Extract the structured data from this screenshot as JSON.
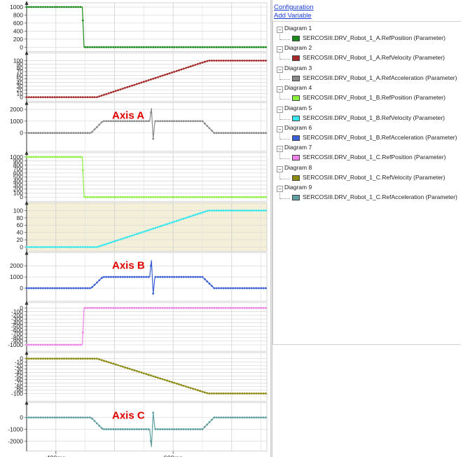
{
  "links": {
    "configuration": "Configuration",
    "add_variable": "Add Variable"
  },
  "tree": [
    {
      "diagram": "Diagram 1",
      "variable": "SERCOSIII.DRV_Robot_1_A.RefPosition (Parameter)",
      "color": "#1a8a1a"
    },
    {
      "diagram": "Diagram 2",
      "variable": "SERCOSIII.DRV_Robot_1_A.RefVelocity (Parameter)",
      "color": "#a52a2a"
    },
    {
      "diagram": "Diagram 3",
      "variable": "SERCOSIII.DRV_Robot_1_A.RefAcceleration (Parameter)",
      "color": "#8a8a8a"
    },
    {
      "diagram": "Diagram 4",
      "variable": "SERCOSIII.DRV_Robot_1_B.RefPosition (Parameter)",
      "color": "#8cf03c"
    },
    {
      "diagram": "Diagram 5",
      "variable": "SERCOSIII.DRV_Robot_1_B.RefVelocity (Parameter)",
      "color": "#34e6ee"
    },
    {
      "diagram": "Diagram 6",
      "variable": "SERCOSIII.DRV_Robot_1_B.RefAcceleration (Parameter)",
      "color": "#3a5fd6"
    },
    {
      "diagram": "Diagram 7",
      "variable": "SERCOSIII.DRV_Robot_1_C.RefPosition (Parameter)",
      "color": "#ee82e6"
    },
    {
      "diagram": "Diagram 8",
      "variable": "SERCOSIII.DRV_Robot_1_C.RefVelocity (Parameter)",
      "color": "#8a8a10"
    },
    {
      "diagram": "Diagram 9",
      "variable": "SERCOSIII.DRV_Robot_1_C.RefAcceleration (Parameter)",
      "color": "#5f9ea0"
    }
  ],
  "annotations": {
    "axis_a": "Axis A",
    "axis_b": "Axis B",
    "axis_c": "Axis C",
    "color": "#e00000"
  },
  "chart_data": {
    "type": "line",
    "x_unit": "ms",
    "xlim": [
      350,
      760
    ],
    "x_ticks": [
      400,
      600
    ],
    "x_tick_labels": [
      "400ms",
      "600ms"
    ],
    "grid": true,
    "diagrams": [
      {
        "name": "SERCOSIII.DRV_Robot_1_A.RefPosition (Parameter)",
        "color": "#1a8a1a",
        "ylim": [
          0,
          1000
        ],
        "yticks": [
          0,
          200,
          400,
          600,
          800,
          1000
        ],
        "points": [
          [
            350,
            1000
          ],
          [
            445,
            1000
          ],
          [
            448,
            0
          ],
          [
            760,
            0
          ]
        ]
      },
      {
        "name": "SERCOSIII.DRV_Robot_1_A.RefVelocity (Parameter)",
        "color": "#a52a2a",
        "ylim": [
          0,
          110
        ],
        "yticks": [
          0,
          10,
          20,
          30,
          40,
          50,
          60,
          70,
          80,
          90,
          100
        ],
        "points": [
          [
            350,
            0
          ],
          [
            470,
            0
          ],
          [
            660,
            100
          ],
          [
            760,
            100
          ]
        ]
      },
      {
        "name": "SERCOSIII.DRV_Robot_1_A.RefAcceleration (Parameter)",
        "color": "#8a8a8a",
        "ylim": [
          -1200,
          2200
        ],
        "yticks": [
          0,
          1000,
          2000
        ],
        "points": [
          [
            350,
            0
          ],
          [
            460,
            0
          ],
          [
            480,
            1000
          ],
          [
            560,
            1000
          ],
          [
            563,
            2100
          ],
          [
            566,
            -500
          ],
          [
            569,
            1000
          ],
          [
            650,
            1000
          ],
          [
            670,
            0
          ],
          [
            760,
            0
          ]
        ]
      },
      {
        "name": "SERCOSIII.DRV_Robot_1_B.RefPosition (Parameter)",
        "color": "#8cf03c",
        "ylim": [
          0,
          1000
        ],
        "yticks": [
          0,
          100,
          200,
          300,
          400,
          500,
          600,
          700,
          800,
          900,
          1000
        ],
        "points": [
          [
            350,
            1000
          ],
          [
            445,
            1000
          ],
          [
            448,
            0
          ],
          [
            760,
            0
          ]
        ]
      },
      {
        "name": "SERCOSIII.DRV_Robot_1_B.RefVelocity (Parameter)",
        "color": "#34e6ee",
        "ylim": [
          0,
          110
        ],
        "yticks": [
          0,
          20,
          40,
          60,
          80,
          100
        ],
        "bg": "#f3efd8",
        "points": [
          [
            350,
            0
          ],
          [
            470,
            0
          ],
          [
            660,
            100
          ],
          [
            760,
            100
          ]
        ]
      },
      {
        "name": "SERCOSIII.DRV_Robot_1_B.RefAcceleration (Parameter)",
        "color": "#3a5fd6",
        "ylim": [
          -800,
          2800
        ],
        "yticks": [
          0,
          1000,
          2000
        ],
        "points": [
          [
            350,
            0
          ],
          [
            460,
            0
          ],
          [
            480,
            1000
          ],
          [
            560,
            1000
          ],
          [
            563,
            2500
          ],
          [
            566,
            -500
          ],
          [
            569,
            1000
          ],
          [
            650,
            1000
          ],
          [
            670,
            0
          ],
          [
            760,
            0
          ]
        ]
      },
      {
        "name": "SERCOSIII.DRV_Robot_1_C.RefPosition (Parameter)",
        "color": "#ee82e6",
        "ylim": [
          -1060,
          30
        ],
        "yticks": [
          0,
          -100,
          -200,
          -300,
          -400,
          -500,
          -600,
          -700,
          -800,
          -900,
          -1000
        ],
        "points": [
          [
            350,
            -1000
          ],
          [
            445,
            -1000
          ],
          [
            448,
            0
          ],
          [
            760,
            0
          ]
        ]
      },
      {
        "name": "SERCOSIII.DRV_Robot_1_C.RefVelocity (Parameter)",
        "color": "#8a8a10",
        "ylim": [
          -110,
          5
        ],
        "yticks": [
          0,
          -10,
          -20,
          -30,
          -40,
          -50,
          -60,
          -70,
          -80,
          -90,
          -100
        ],
        "points": [
          [
            350,
            0
          ],
          [
            470,
            0
          ],
          [
            660,
            -100
          ],
          [
            760,
            -100
          ]
        ]
      },
      {
        "name": "SERCOSIII.DRV_Robot_1_C.RefAcceleration (Parameter)",
        "color": "#5f9ea0",
        "ylim": [
          -2500,
          900
        ],
        "yticks": [
          0,
          -1000,
          -2000
        ],
        "points": [
          [
            350,
            0
          ],
          [
            460,
            0
          ],
          [
            480,
            -1000
          ],
          [
            560,
            -1000
          ],
          [
            563,
            -2500
          ],
          [
            566,
            400
          ],
          [
            569,
            -1000
          ],
          [
            650,
            -1000
          ],
          [
            670,
            0
          ],
          [
            760,
            0
          ]
        ]
      }
    ]
  }
}
